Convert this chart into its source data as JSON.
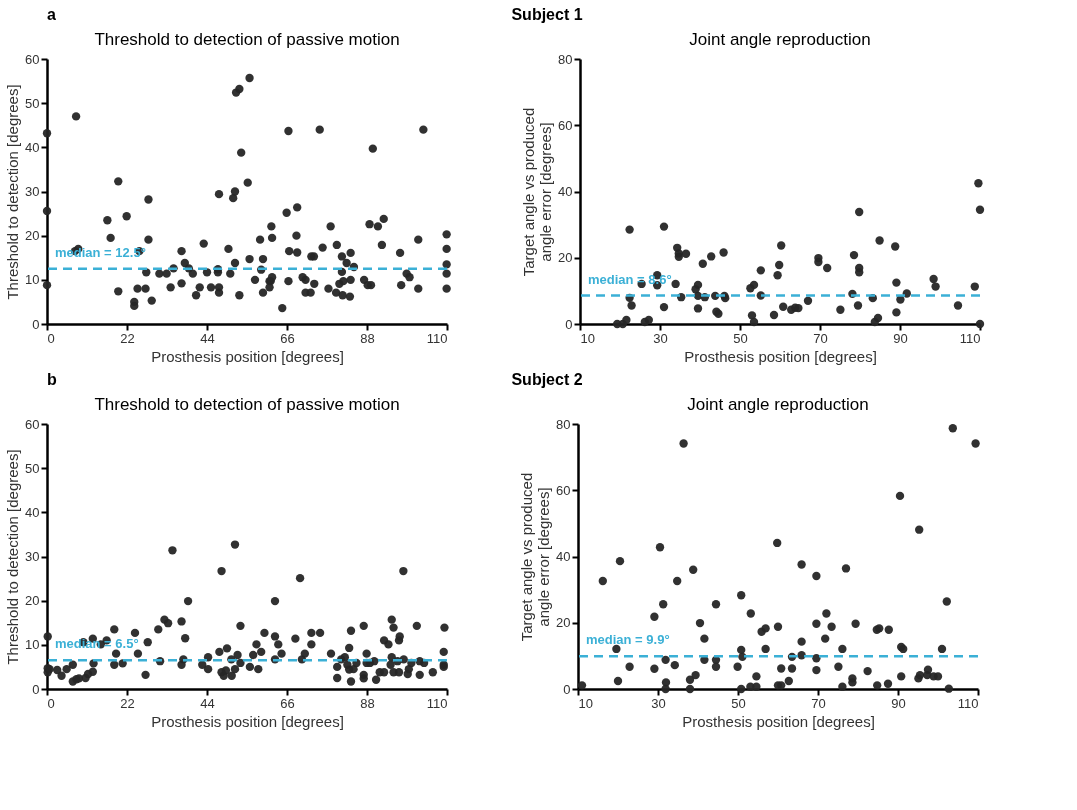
{
  "chart_data": [
    {
      "type": "scatter",
      "title": "Threshold to detection of passive motion",
      "xlabel": "Prosthesis position [degrees]",
      "ylabel": "Threshold to detection [degrees]",
      "annotations": [
        "a",
        "Subject 1"
      ],
      "xlim": [
        0,
        110
      ],
      "xticks": [
        0,
        22,
        44,
        66,
        88,
        110
      ],
      "ylim": [
        0,
        60
      ],
      "yticks": [
        0,
        10,
        20,
        30,
        40,
        50,
        60
      ],
      "x": [
        0,
        0,
        0,
        8,
        7.7,
        8.6,
        16.6,
        17.5,
        19.6,
        19.6,
        21.9,
        24,
        24,
        24.9,
        25.4,
        27.1,
        27.3,
        27.9,
        27.9,
        28.8,
        30.9,
        32.9,
        34,
        34.8,
        37,
        37,
        37.9,
        39,
        40.1,
        41,
        42,
        43.1,
        44,
        45.1,
        47,
        47,
        47.3,
        47.3,
        47.3,
        49.9,
        50.4,
        51.2,
        51.7,
        51.7,
        52,
        52.9,
        52.9,
        53.4,
        55.2,
        55.7,
        55.7,
        57.2,
        58.6,
        58.9,
        59.4,
        59.4,
        61.2,
        61.5,
        61.9,
        61.2,
        61.7,
        61.9,
        64.7,
        65.9,
        66.4,
        66.4,
        66.6,
        68.8,
        68.6,
        68.8,
        70.3,
        71.1,
        71.1,
        72.5,
        72.7,
        73.4,
        73.5,
        75,
        75.8,
        77.4,
        78,
        79.5,
        79.7,
        80.4,
        81.1,
        81.1,
        81.3,
        81.5,
        82.4,
        83.3,
        83.5,
        83.5,
        84.4,
        87.2,
        88.2,
        89.1,
        88.7,
        89.6,
        91,
        92.1,
        92.6,
        97.1,
        97.4,
        98.9,
        99.7,
        102.1,
        102.1,
        103.5,
        109.9,
        109.9,
        109.9,
        109.9,
        109.9
      ],
      "series": [
        {
          "color": "#262626",
          "values": [
            43.2,
            25.6,
            8.8,
            47,
            16.5,
            17,
            23.5,
            19.5,
            32.3,
            7.4,
            24.4,
            5,
            4.1,
            8,
            16.5,
            8,
            11.7,
            28.2,
            19.1,
            5.3,
            11.4,
            11.4,
            8.3,
            12.6,
            16.5,
            9.2,
            13.8,
            12.6,
            11.4,
            6.5,
            8.3,
            18.2,
            11.7,
            8.3,
            12.4,
            11.7,
            29.4,
            8.3,
            7.1,
            17,
            11.4,
            28.5,
            30,
            13.8,
            52.4,
            53.2,
            6.5,
            38.8,
            32,
            55.7,
            14.7,
            10,
            19.1,
            12.3,
            14.7,
            7.1,
            9.7,
            9.7,
            10.6,
            8.3,
            22.1,
            19.5,
            3.6,
            25.2,
            43.7,
            9.7,
            16.5,
            26.4,
            20,
            16.2,
            10.6,
            10,
            7.1,
            7.1,
            15.3,
            15.3,
            9.1,
            44,
            17.3,
            8,
            22.1,
            7.1,
            17.9,
            9.1,
            15.3,
            11.8,
            6.5,
            9.7,
            13.8,
            6.2,
            16.1,
            10,
            12.9,
            10,
            8.8,
            8.8,
            22.6,
            39.7,
            22.1,
            17.9,
            23.8,
            16.1,
            8.8,
            11.4,
            10.6,
            19.1,
            8,
            44,
            20.3,
            17,
            13.5,
            11.4,
            8
          ]
        }
      ],
      "ref_lines": [
        {
          "axis": "y",
          "value": 12.5,
          "label": "median = 12.5°",
          "color": "#3bb0d6",
          "line_style": "dashed"
        }
      ]
    },
    {
      "type": "scatter",
      "title": "Joint angle reproduction",
      "xlabel": "Prosthesis position [degrees]",
      "ylabel": "Target angle vs produced\nangle error [degrees]",
      "xlim": [
        10,
        110
      ],
      "xticks": [
        10,
        30,
        50,
        70,
        90,
        110
      ],
      "ylim": [
        0,
        80
      ],
      "yticks": [
        0,
        20,
        40,
        60,
        80
      ],
      "x": [
        19.3,
        20.7,
        21.6,
        22.4,
        22.4,
        22.9,
        25.4,
        26.2,
        27.2,
        29.3,
        29.3,
        31,
        31,
        33.9,
        34.3,
        34.7,
        34.7,
        35.3,
        36.5,
        38.9,
        39.5,
        39.5,
        39.5,
        40.7,
        41.2,
        42.8,
        43.8,
        44.1,
        44.6,
        45.9,
        46.1,
        46.3,
        52.6,
        53,
        53.5,
        53.5,
        55.2,
        55.2,
        58.5,
        59.4,
        59.8,
        60.3,
        60.8,
        62.8,
        63.8,
        64.6,
        67,
        69.6,
        69.6,
        71.8,
        75.1,
        78.1,
        78.5,
        79.5,
        79.8,
        79.8,
        79.8,
        83.2,
        83.7,
        84.5,
        84.9,
        88.8,
        89.1,
        89.1,
        90.1,
        91.7,
        98.4,
        98.9,
        104.5,
        108.7,
        109.6,
        110,
        110
      ],
      "series": [
        {
          "color": "#262626",
          "values": [
            0,
            0,
            1.2,
            28.5,
            7.9,
            5.6,
            12.1,
            0.6,
            1.2,
            14.7,
            11.7,
            29.4,
            5.1,
            12.1,
            23,
            21.3,
            20.3,
            8.1,
            21.2,
            10.5,
            11.8,
            8.5,
            4.7,
            18.2,
            8.1,
            20.4,
            8.5,
            3.7,
            3.1,
            21.6,
            8.5,
            7.8,
            10.8,
            2.6,
            11.8,
            0.6,
            16.2,
            8.6,
            2.7,
            14.7,
            17.8,
            23.7,
            5.2,
            4.3,
            4.9,
            4.8,
            7,
            19.9,
            18.7,
            16.9,
            4.3,
            9.1,
            20.8,
            5.6,
            33.8,
            16.9,
            15.6,
            7.8,
            0.6,
            1.8,
            25.2,
            23.4,
            12.5,
            3.5,
            7.4,
            9.2,
            13.6,
            11.3,
            5.6,
            11.3,
            42.5,
            34.5,
            0
          ]
        }
      ],
      "ref_lines": [
        {
          "axis": "y",
          "value": 8.6,
          "label": "median = 8.6°",
          "color": "#3bb0d6",
          "line_style": "dashed"
        }
      ]
    },
    {
      "type": "scatter",
      "title": "Threshold to detection of passive motion",
      "xlabel": "Prosthesis position [degrees]",
      "ylabel": "Threshold to detection [degrees]",
      "annotations": [
        "b",
        "Subject 2"
      ],
      "xlim": [
        0,
        110
      ],
      "xticks": [
        0,
        22,
        44,
        66,
        88,
        110
      ],
      "ylim": [
        0,
        60
      ],
      "yticks": [
        0,
        10,
        20,
        30,
        40,
        50,
        60
      ],
      "x": [
        0.2,
        0.2,
        0.2,
        0.7,
        2.8,
        4,
        5.4,
        7.1,
        7.1,
        8.1,
        8.8,
        10,
        10.6,
        11.3,
        12.6,
        12.8,
        12.6,
        14.8,
        16.4,
        18.5,
        19,
        18.5,
        20.8,
        24.2,
        25,
        27.1,
        27.7,
        30.6,
        31.1,
        32.3,
        33.3,
        34.5,
        37,
        37,
        37.5,
        38,
        38.8,
        42.7,
        44.3,
        44.3,
        47.4,
        48,
        48,
        48.6,
        49.2,
        49.5,
        50.7,
        50.8,
        51.7,
        51.7,
        52.4,
        53.2,
        53.2,
        55.8,
        56.7,
        57.6,
        58.1,
        58.9,
        59.8,
        62.7,
        62.7,
        62.7,
        63.6,
        64.5,
        68.3,
        69.6,
        70.1,
        70.9,
        72.7,
        72.7,
        75.1,
        78.1,
        79.8,
        79.8,
        80.9,
        81.9,
        82.6,
        83.1,
        83.6,
        83.6,
        83.1,
        84.3,
        85.1,
        87.1,
        87.1,
        87.1,
        87.9,
        87.9,
        88.8,
        90,
        90.5,
        91.5,
        92.7,
        92.7,
        93.9,
        94.8,
        94.8,
        94.5,
        95.3,
        95.3,
        96.4,
        96.8,
        97,
        96.8,
        98,
        98.1,
        99.2,
        99.5,
        100.2,
        101.7,
        102.5,
        102.5,
        103.7,
        106.1,
        109.1,
        109.1,
        109.3,
        109.1
      ],
      "series": [
        {
          "color": "#262626",
          "values": [
            11.9,
            3.8,
            4.7,
            4.5,
            4.3,
            3,
            4.5,
            5.5,
            1.7,
            2.2,
            2.4,
            10.6,
            2.5,
            3.4,
            11.4,
            5.8,
            3.9,
            10.1,
            11,
            13.5,
            8,
            5.5,
            5.8,
            12.7,
            8,
            3.2,
            10.6,
            13.5,
            6.3,
            15.7,
            14.9,
            31.4,
            15.3,
            5.5,
            6.7,
            11.5,
            19.9,
            5.5,
            7.2,
            4.5,
            8.4,
            26.7,
            3.8,
            3,
            4.2,
            9.2,
            6.7,
            3,
            32.7,
            4.5,
            7.7,
            5.9,
            14.3,
            5,
            7.7,
            10.1,
            4.5,
            8.4,
            12.7,
            11.9,
            19.9,
            6.7,
            10.1,
            8,
            11.4,
            25.1,
            6.7,
            8,
            12.7,
            10.1,
            12.7,
            8,
            5,
            2.5,
            6.7,
            7.2,
            5.5,
            9.3,
            13.2,
            1.7,
            4.4,
            4.5,
            5.9,
            14.3,
            3.2,
            2.4,
            8,
            5.9,
            5.9,
            6.3,
            2.1,
            3.8,
            11,
            3.8,
            10.1,
            15.7,
            7.2,
            5.5,
            13.9,
            3.8,
            6.3,
            11,
            11.9,
            3.8,
            26.7,
            6.7,
            3.4,
            4.5,
            5.9,
            14.3,
            6.3,
            3.2,
            5.9,
            3.8,
            5.5,
            8.4,
            13.9,
            5
          ]
        }
      ],
      "ref_lines": [
        {
          "axis": "y",
          "value": 6.5,
          "label": "median = 6.5°",
          "color": "#3bb0d6",
          "line_style": "dashed"
        }
      ]
    },
    {
      "type": "scatter",
      "title": "Joint angle reproduction",
      "xlabel": "Prosthesis position [degrees]",
      "ylabel": "Target angle vs produced\nangle error [degrees]",
      "xlim": [
        10,
        110
      ],
      "xticks": [
        10,
        30,
        50,
        70,
        90,
        110
      ],
      "ylim": [
        0,
        80
      ],
      "yticks": [
        0,
        20,
        40,
        60,
        80
      ],
      "x": [
        11,
        16.2,
        19.6,
        20,
        20.5,
        22.9,
        29.1,
        29.1,
        30.5,
        31.3,
        31.9,
        32,
        31.9,
        34.2,
        34.8,
        36.4,
        38,
        38,
        38.8,
        39.4,
        40.5,
        41.6,
        41.6,
        44.5,
        44.5,
        44.5,
        49.9,
        50.8,
        50.8,
        51.1,
        50.8,
        53.2,
        53.1,
        54.6,
        54.6,
        55.9,
        56.9,
        56.9,
        59.8,
        60,
        60,
        60.8,
        60.8,
        62.7,
        63.5,
        63.5,
        65.9,
        65.9,
        65.9,
        69.6,
        69.6,
        69.6,
        69.6,
        71.8,
        72.1,
        73.4,
        75.1,
        76.1,
        76.1,
        77,
        78.6,
        78.6,
        79.4,
        82.4,
        84.7,
        85.3,
        84.8,
        87.5,
        87.7,
        90.5,
        90.8,
        91.3,
        90.8,
        95.3,
        95.1,
        95.5,
        97.5,
        97.3,
        98.9,
        100,
        101,
        102.2,
        102.7,
        103.7,
        109.4
      ],
      "series": [
        {
          "color": "#262626",
          "values": [
            1.1,
            32.6,
            12.1,
            2.4,
            38.6,
            6.7,
            6.1,
            21.8,
            42.8,
            25.6,
            8.8,
            2,
            0,
            7.2,
            32.6,
            74.1,
            2.8,
            0,
            36,
            4.2,
            19.9,
            15.2,
            8.8,
            25.6,
            8.8,
            6.7,
            6.7,
            28.3,
            11.8,
            9.7,
            0,
            22.8,
            0.7,
            3.8,
            0.7,
            17.3,
            18.3,
            12.1,
            44.1,
            18.8,
            1.1,
            1.1,
            6.2,
            2.4,
            9.7,
            6.2,
            37.6,
            14.3,
            10.2,
            34.1,
            19.7,
            9.3,
            5.7,
            15.2,
            22.8,
            18.8,
            6.7,
            12.1,
            0.7,
            36.4,
            3.2,
            2,
            19.7,
            5.4,
            17.9,
            18.3,
            1.1,
            1.6,
            17.9,
            58.3,
            12.7,
            12.1,
            3.8,
            48.1,
            3.2,
            4.2,
            5.8,
            4.2,
            3.8,
            3.8,
            12.1,
            26.4,
            0.1,
            78.7,
            74.1
          ]
        }
      ],
      "ref_lines": [
        {
          "axis": "y",
          "value": 9.9,
          "label": "median = 9.9°",
          "color": "#3bb0d6",
          "line_style": "dashed"
        }
      ]
    }
  ]
}
